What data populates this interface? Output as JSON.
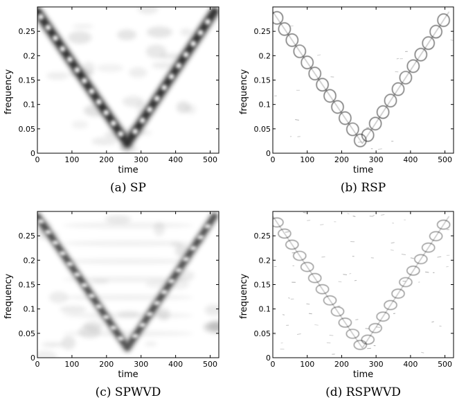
{
  "chart_data": [
    {
      "type": "heatmap",
      "caption": "(a) SP",
      "xlabel": "time",
      "ylabel": "frequency",
      "xlim": [
        0,
        525
      ],
      "ylim": [
        0,
        0.3
      ],
      "xticks": [
        "0",
        "100",
        "200",
        "300",
        "400",
        "500"
      ],
      "yticks": [
        "0",
        "0.05",
        "0.1",
        "0.15",
        "0.2",
        "0.25"
      ],
      "colormap": "gray-inverted",
      "pattern": "V-shaped chirp, minimum near time 260",
      "series": [
        {
          "values": [
            [
              0,
              0.29
            ],
            [
              260,
              0.02
            ],
            [
              512,
              0.29
            ]
          ]
        }
      ]
    },
    {
      "type": "heatmap",
      "caption": "(b) RSP",
      "xlabel": "time",
      "ylabel": "frequency",
      "xlim": [
        0,
        525
      ],
      "ylim": [
        0,
        0.3
      ],
      "xticks": [
        "0",
        "100",
        "200",
        "300",
        "400",
        "500"
      ],
      "yticks": [
        "0",
        "0.05",
        "0.1",
        "0.15",
        "0.2",
        "0.25"
      ],
      "colormap": "gray-inverted",
      "pattern": "V-shaped chirp, minimum near time 260",
      "series": [
        {
          "values": [
            [
              0,
              0.29
            ],
            [
              260,
              0.02
            ],
            [
              512,
              0.29
            ]
          ]
        }
      ]
    },
    {
      "type": "heatmap",
      "caption": "(c) SPWVD",
      "xlabel": "time",
      "ylabel": "frequency",
      "xlim": [
        0,
        525
      ],
      "ylim": [
        0,
        0.3
      ],
      "xticks": [
        "0",
        "100",
        "200",
        "300",
        "400",
        "500"
      ],
      "yticks": [
        "0",
        "0.05",
        "0.1",
        "0.15",
        "0.2",
        "0.25"
      ],
      "colormap": "gray-inverted",
      "pattern": "V-shaped chirp, minimum near time 260",
      "series": [
        {
          "values": [
            [
              0,
              0.29
            ],
            [
              260,
              0.02
            ],
            [
              512,
              0.29
            ]
          ]
        }
      ]
    },
    {
      "type": "heatmap",
      "caption": "(d) RSPWVD",
      "xlabel": "time",
      "ylabel": "frequency",
      "xlim": [
        0,
        525
      ],
      "ylim": [
        0,
        0.3
      ],
      "xticks": [
        "0",
        "100",
        "200",
        "300",
        "400",
        "500"
      ],
      "yticks": [
        "0",
        "0.05",
        "0.1",
        "0.15",
        "0.2",
        "0.25"
      ],
      "colormap": "gray-inverted",
      "pattern": "V-shaped chirp, minimum near time 260",
      "series": [
        {
          "values": [
            [
              0,
              0.29
            ],
            [
              260,
              0.02
            ],
            [
              512,
              0.29
            ]
          ]
        }
      ]
    }
  ]
}
